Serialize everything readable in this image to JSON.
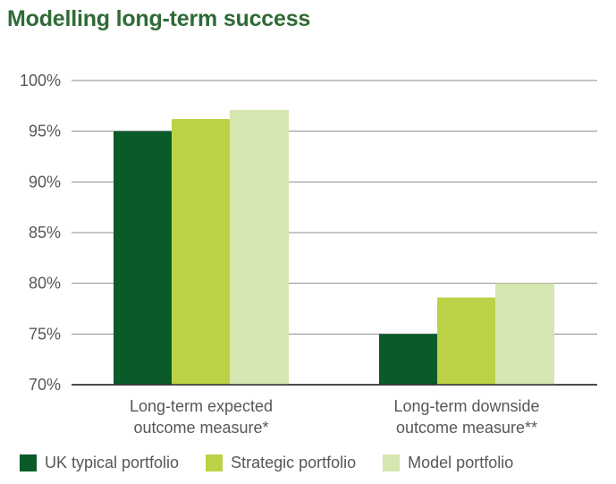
{
  "title": "Modelling long-term success",
  "chart_data": {
    "type": "bar",
    "categories": [
      [
        "Long-term expected",
        "outcome measure*"
      ],
      [
        "Long-term downside",
        "outcome measure**"
      ]
    ],
    "series": [
      {
        "name": "UK typical portfolio",
        "color": "#0b5a2a",
        "values": [
          95.0,
          75.0
        ]
      },
      {
        "name": "Strategic portfolio",
        "color": "#bcd246",
        "values": [
          96.2,
          78.6
        ]
      },
      {
        "name": "Model portfolio",
        "color": "#d6e6b0",
        "values": [
          97.1,
          80.0
        ]
      }
    ],
    "yticks": [
      "70%",
      "75%",
      "80%",
      "85%",
      "90%",
      "95%",
      "100%"
    ],
    "ylim": [
      70,
      100
    ],
    "grid": true,
    "legend_position": "bottom"
  }
}
